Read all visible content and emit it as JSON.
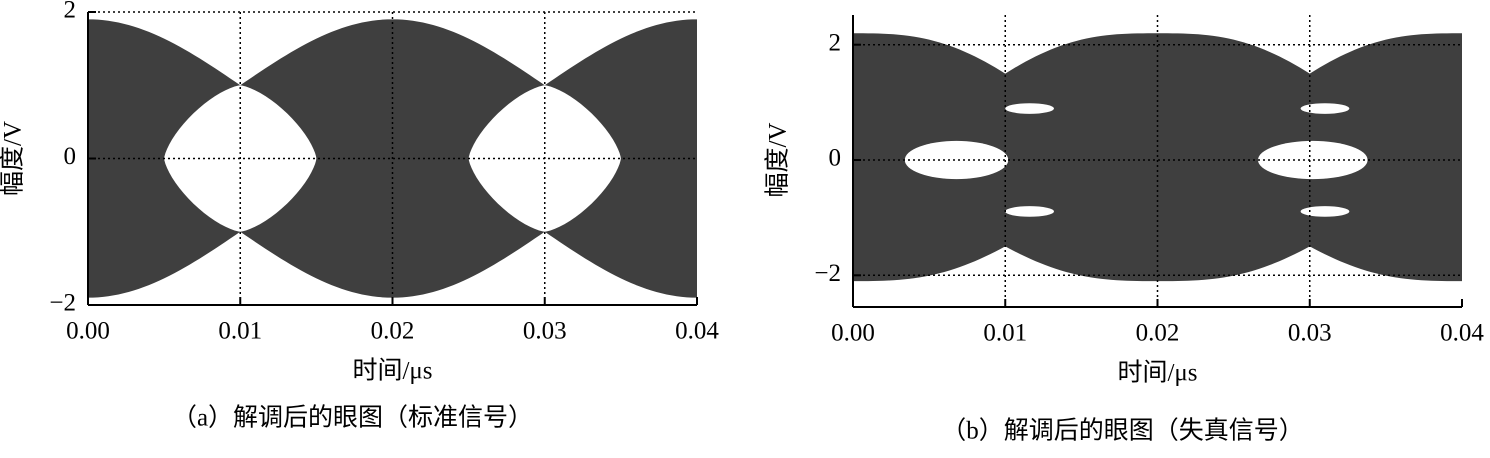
{
  "chart_data": [
    {
      "type": "eye",
      "caption": "（a）解调后的眼图（标准信号）",
      "xlabel": "时间/μs",
      "ylabel": "幅度/V",
      "xlim": [
        0,
        0.04
      ],
      "ylim": [
        -2,
        2
      ],
      "xticks": [
        {
          "value": 0,
          "label": "0.00"
        },
        {
          "value": 0.01,
          "label": "0.01"
        },
        {
          "value": 0.02,
          "label": "0.02"
        },
        {
          "value": 0.03,
          "label": "0.03"
        },
        {
          "value": 0.04,
          "label": "0.04"
        }
      ],
      "yticks": [
        {
          "value": -2,
          "label": "−2"
        },
        0,
        2
      ],
      "grid": true,
      "color": "#3f3f3f"
    },
    {
      "type": "eye",
      "caption": "（b）解调后的眼图（失真信号）",
      "xlabel": "时间/μs",
      "ylabel": "幅度/V",
      "xlim": [
        0,
        0.04
      ],
      "ylim": [
        -2.55,
        2.55
      ],
      "xticks": [
        {
          "value": 0,
          "label": "0.00"
        },
        {
          "value": 0.01,
          "label": "0.01"
        },
        {
          "value": 0.02,
          "label": "0.02"
        },
        {
          "value": 0.03,
          "label": "0.03"
        },
        {
          "value": 0.04,
          "label": "0.04"
        }
      ],
      "yticks": [
        {
          "value": -2,
          "label": "−2"
        },
        0,
        2
      ],
      "grid": true,
      "color": "#3f3f3f"
    }
  ]
}
